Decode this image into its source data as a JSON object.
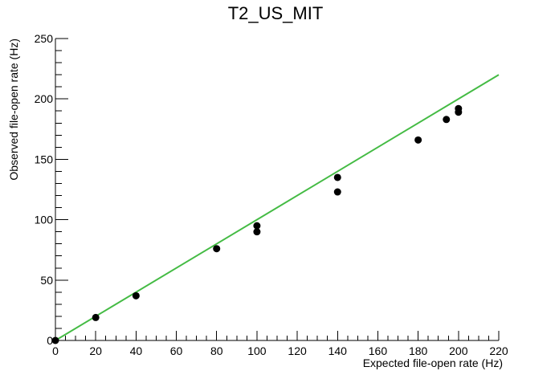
{
  "chart_data": {
    "type": "scatter",
    "title": "T2_US_MIT",
    "xlabel": "Expected file-open rate (Hz)",
    "ylabel": "Observed file-open rate (Hz)",
    "xlim": [
      0,
      220
    ],
    "ylim": [
      0,
      250
    ],
    "x_ticks": [
      0,
      20,
      40,
      60,
      80,
      100,
      120,
      140,
      160,
      180,
      200,
      220
    ],
    "y_ticks": [
      0,
      50,
      100,
      150,
      200,
      250
    ],
    "grid": false,
    "legend": "none",
    "series": [
      {
        "kind": "markers",
        "color": "#000000",
        "points": [
          {
            "x": 0,
            "y": 0
          },
          {
            "x": 20,
            "y": 19
          },
          {
            "x": 40,
            "y": 37
          },
          {
            "x": 80,
            "y": 76
          },
          {
            "x": 100,
            "y": 95
          },
          {
            "x": 100,
            "y": 90
          },
          {
            "x": 140,
            "y": 135
          },
          {
            "x": 140,
            "y": 123
          },
          {
            "x": 180,
            "y": 166
          },
          {
            "x": 194,
            "y": 183
          },
          {
            "x": 200,
            "y": 192
          },
          {
            "x": 200,
            "y": 189
          }
        ]
      },
      {
        "kind": "line",
        "color": "#44bb44",
        "points": [
          {
            "x": 0,
            "y": 0
          },
          {
            "x": 220,
            "y": 220
          }
        ]
      }
    ]
  }
}
